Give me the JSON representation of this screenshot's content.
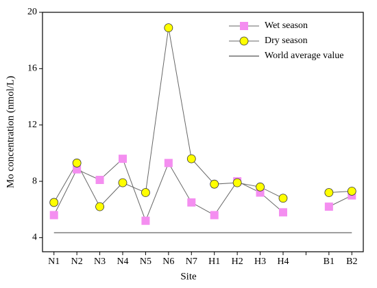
{
  "chart_data": {
    "type": "line",
    "x_label": "Site",
    "y_label": "Mo concentration (nmol/L)",
    "categories": [
      "N1",
      "N2",
      "N3",
      "N4",
      "N5",
      "N6",
      "N7",
      "H1",
      "H2",
      "H3",
      "H4",
      null,
      "B1",
      "B2"
    ],
    "series": [
      {
        "name": "Wet season",
        "color": "#f48ef0",
        "marker": "square",
        "values": [
          5.6,
          8.85,
          8.1,
          9.6,
          5.2,
          9.3,
          6.5,
          5.6,
          8.0,
          7.2,
          5.8,
          null,
          6.2,
          7.0
        ]
      },
      {
        "name": "Dry season",
        "color": "#ffff00",
        "marker": "circle",
        "values": [
          6.5,
          9.3,
          6.2,
          7.9,
          7.2,
          18.9,
          9.6,
          7.8,
          7.9,
          7.6,
          6.8,
          null,
          7.2,
          7.3
        ]
      }
    ],
    "reference": {
      "name": "World average value",
      "value": 4.35,
      "color": "#555555"
    },
    "ylim": [
      3,
      20
    ],
    "yticks": [
      4,
      8,
      12,
      16,
      20
    ],
    "legend": "top-right"
  }
}
